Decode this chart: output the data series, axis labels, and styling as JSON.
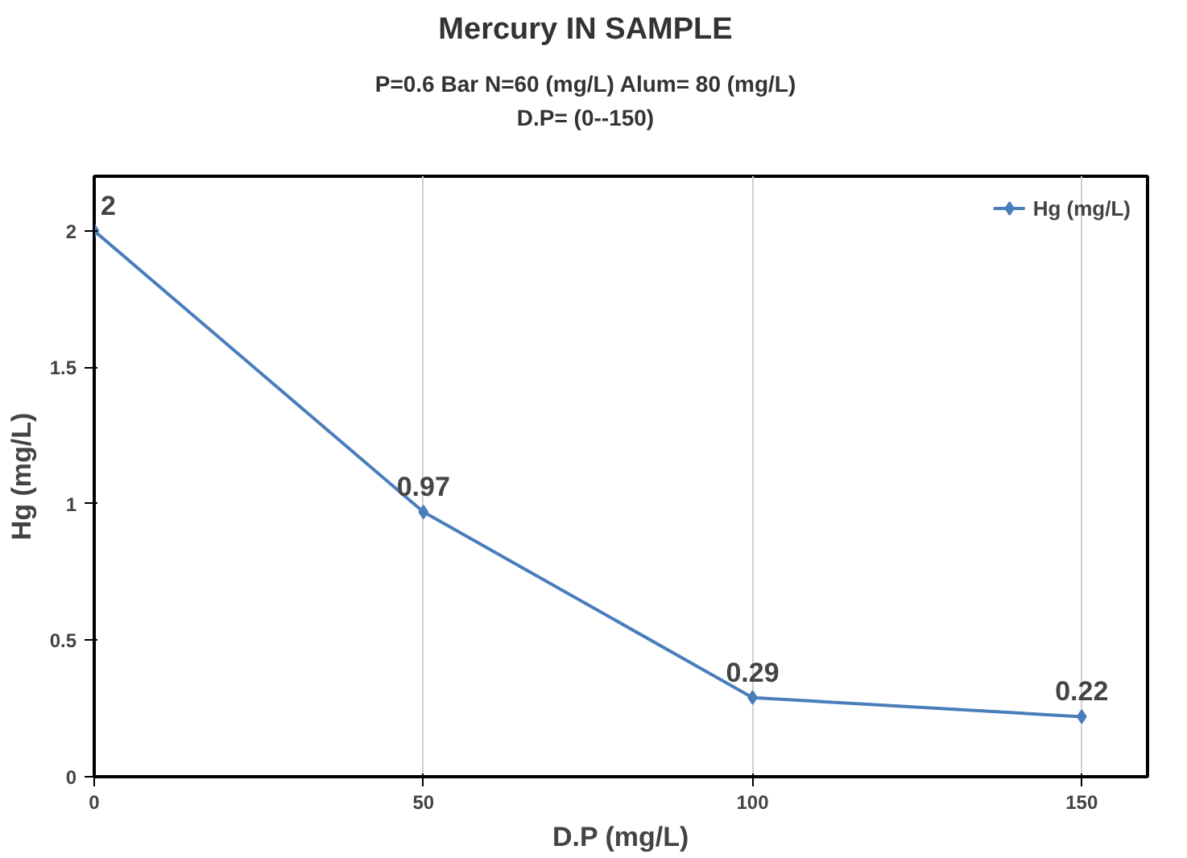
{
  "chart_data": {
    "type": "line",
    "title": "Mercury IN SAMPLE",
    "subtitle": "P=0.6 Bar   N=60  (mg/L)   Alum= 80 (mg/L)\nD.P= (0--150)",
    "xlabel": "D.P (mg/L)",
    "ylabel": "Hg (mg/L)",
    "x": [
      0,
      50,
      100,
      150
    ],
    "series": [
      {
        "name": "Hg (mg/L)",
        "color": "#4a7ebb",
        "values": [
          2,
          0.97,
          0.29,
          0.22
        ]
      }
    ],
    "xlim": [
      0,
      160
    ],
    "ylim": [
      0,
      2.2
    ],
    "xticks": [
      0,
      50,
      100,
      150
    ],
    "yticks": [
      0,
      0.5,
      1,
      1.5,
      2
    ],
    "grid": "x",
    "legend": "top right",
    "marker": "diamond",
    "line_style": "solid",
    "data_labels": true
  }
}
